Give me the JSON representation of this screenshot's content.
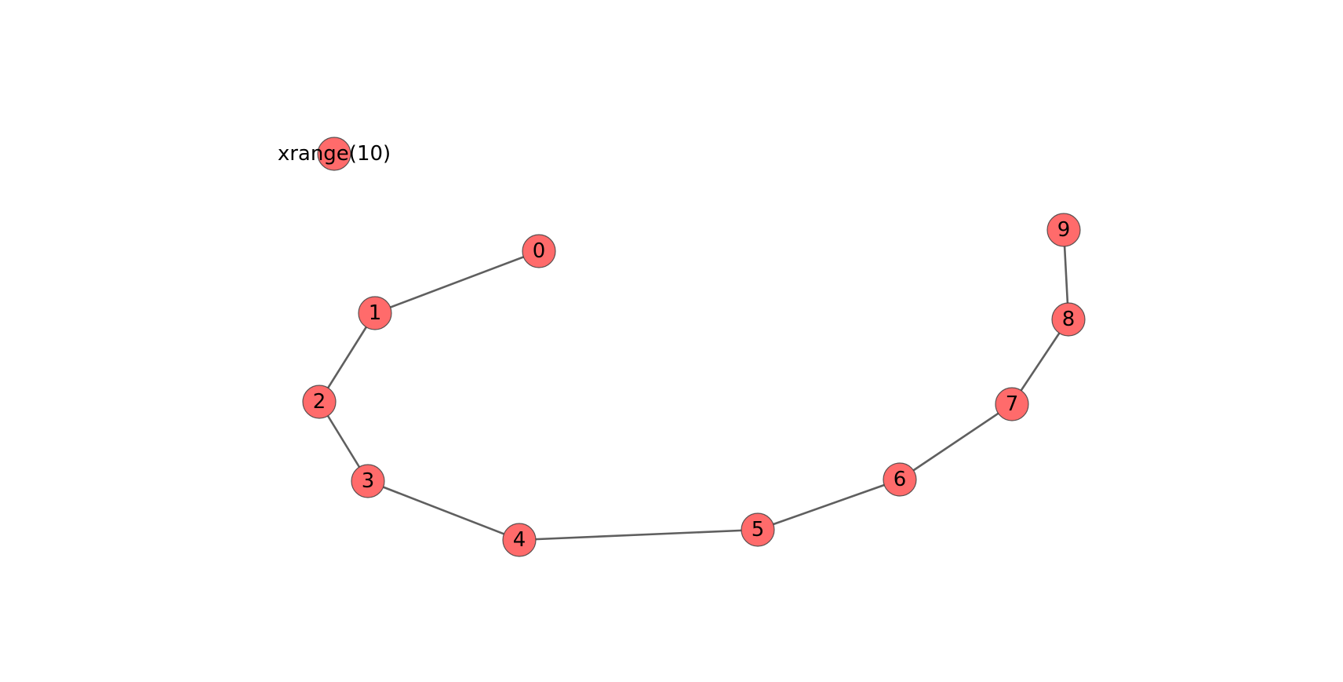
{
  "graph": {
    "node_color": "#ff6b6b",
    "edge_color": "#5f5f5f",
    "nodes": [
      {
        "id": "xrange(10)",
        "label": "xrange(10)"
      },
      {
        "id": "0",
        "label": "0"
      },
      {
        "id": "1",
        "label": "1"
      },
      {
        "id": "2",
        "label": "2"
      },
      {
        "id": "3",
        "label": "3"
      },
      {
        "id": "4",
        "label": "4"
      },
      {
        "id": "5",
        "label": "5"
      },
      {
        "id": "6",
        "label": "6"
      },
      {
        "id": "7",
        "label": "7"
      },
      {
        "id": "8",
        "label": "8"
      },
      {
        "id": "9",
        "label": "9"
      }
    ],
    "edges": [
      [
        "0",
        "1"
      ],
      [
        "1",
        "2"
      ],
      [
        "2",
        "3"
      ],
      [
        "3",
        "4"
      ],
      [
        "4",
        "5"
      ],
      [
        "5",
        "6"
      ],
      [
        "6",
        "7"
      ],
      [
        "7",
        "8"
      ],
      [
        "8",
        "9"
      ]
    ]
  }
}
